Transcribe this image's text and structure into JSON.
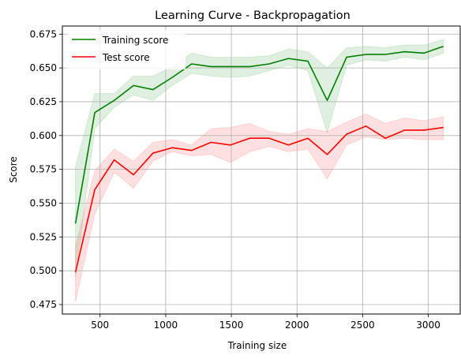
{
  "chart_data": {
    "type": "line",
    "title": "Learning Curve - Backpropagation",
    "xlabel": "Training size",
    "ylabel": "Score",
    "xlim": [
      213,
      3243
    ],
    "ylim": [
      0.468,
      0.681
    ],
    "xticks": [
      500,
      1000,
      1500,
      2000,
      2500,
      3000
    ],
    "yticks": [
      0.475,
      0.5,
      0.525,
      0.55,
      0.575,
      0.6,
      0.625,
      0.65,
      0.675
    ],
    "grid": true,
    "legend": "top-left",
    "x": [
      313,
      460,
      608,
      755,
      903,
      1050,
      1198,
      1345,
      1493,
      1640,
      1788,
      1935,
      2083,
      2230,
      2378,
      2525,
      2673,
      2820,
      2968,
      3115
    ],
    "series": [
      {
        "name": "Training score",
        "color": "#008000",
        "values": [
          0.535,
          0.617,
          0.626,
          0.637,
          0.634,
          0.643,
          0.653,
          0.651,
          0.651,
          0.651,
          0.653,
          0.657,
          0.655,
          0.626,
          0.658,
          0.66,
          0.66,
          0.662,
          0.661,
          0.666
        ],
        "lower": [
          0.495,
          0.605,
          0.621,
          0.63,
          0.626,
          0.637,
          0.646,
          0.644,
          0.643,
          0.644,
          0.648,
          0.652,
          0.648,
          0.602,
          0.652,
          0.656,
          0.655,
          0.658,
          0.656,
          0.661
        ],
        "upper": [
          0.577,
          0.631,
          0.631,
          0.644,
          0.644,
          0.651,
          0.661,
          0.658,
          0.658,
          0.658,
          0.659,
          0.664,
          0.662,
          0.65,
          0.665,
          0.666,
          0.665,
          0.667,
          0.667,
          0.671
        ]
      },
      {
        "name": "Test score",
        "color": "#ff0000",
        "values": [
          0.499,
          0.56,
          0.582,
          0.571,
          0.587,
          0.591,
          0.589,
          0.595,
          0.593,
          0.598,
          0.598,
          0.593,
          0.598,
          0.586,
          0.601,
          0.607,
          0.598,
          0.604,
          0.604,
          0.606
        ],
        "lower": [
          0.477,
          0.542,
          0.573,
          0.561,
          0.581,
          0.588,
          0.585,
          0.586,
          0.58,
          0.588,
          0.592,
          0.588,
          0.59,
          0.568,
          0.593,
          0.599,
          0.597,
          0.598,
          0.597,
          0.597
        ],
        "upper": [
          0.518,
          0.574,
          0.59,
          0.581,
          0.595,
          0.597,
          0.593,
          0.605,
          0.606,
          0.609,
          0.603,
          0.601,
          0.605,
          0.603,
          0.61,
          0.616,
          0.609,
          0.613,
          0.611,
          0.614
        ]
      }
    ]
  }
}
